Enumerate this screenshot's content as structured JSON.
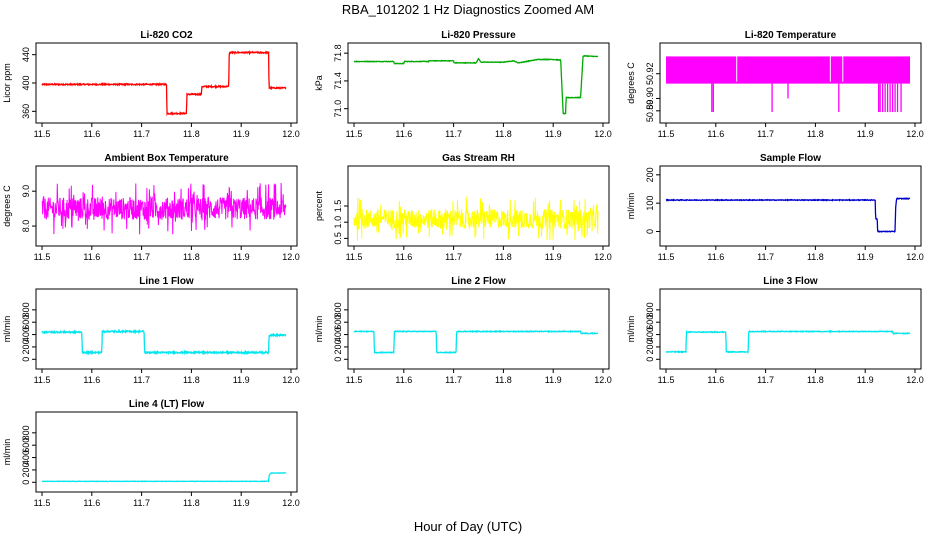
{
  "figure": {
    "title": "RBA_101202  1 Hz Diagnostics Zoomed AM",
    "xlabel": "Hour of Day (UTC)"
  },
  "chart_data": [
    {
      "type": "line",
      "title": "Li-820 CO2",
      "ylabel": "Licor ppm",
      "color": "#ff0000",
      "xlim": [
        11.5,
        12.0
      ],
      "ylim": [
        352,
        448
      ],
      "xticks": [
        "11.5",
        "11.6",
        "11.7",
        "11.8",
        "11.9",
        "12.0"
      ],
      "yticks": [
        "360",
        "400",
        "440"
      ],
      "noise": 0.9,
      "x": [
        11.5,
        11.75,
        11.751,
        11.79,
        11.791,
        11.82,
        11.821,
        11.875,
        11.876,
        11.955,
        11.956,
        11.99
      ],
      "y": [
        398,
        398,
        357,
        357,
        384,
        384,
        395,
        395,
        443,
        443,
        393,
        393
      ]
    },
    {
      "type": "line",
      "title": "Li-820 Pressure",
      "ylabel": "kPa",
      "color": "#00aa00",
      "xlim": [
        11.5,
        12.0
      ],
      "ylim": [
        70.88,
        71.86
      ],
      "xticks": [
        "11.5",
        "11.6",
        "11.7",
        "11.8",
        "11.9",
        "12.0"
      ],
      "yticks": [
        "71.0",
        "71.4",
        "71.8"
      ],
      "noise": 0.004,
      "x": [
        11.5,
        11.58,
        11.581,
        11.6,
        11.601,
        11.65,
        11.651,
        11.7,
        11.701,
        11.745,
        11.75,
        11.755,
        11.8,
        11.82,
        11.83,
        11.87,
        11.9,
        11.915,
        11.92,
        11.925,
        11.926,
        11.955,
        11.96,
        11.965,
        11.99
      ],
      "y": [
        71.68,
        71.68,
        71.65,
        71.65,
        71.68,
        71.68,
        71.69,
        71.69,
        71.66,
        71.66,
        71.72,
        71.67,
        71.67,
        71.69,
        71.66,
        71.71,
        71.71,
        71.7,
        70.93,
        70.93,
        71.16,
        71.16,
        71.76,
        71.76,
        71.75
      ]
    },
    {
      "type": "line",
      "title": "Li-820 Temperature",
      "ylabel": "degrees C",
      "color": "#ff00ff",
      "xlim": [
        11.5,
        12.0
      ],
      "ylim": [
        50.885,
        50.94
      ],
      "xticks": [
        "11.5",
        "11.6",
        "11.7",
        "11.8",
        "11.9",
        "12.0"
      ],
      "yticks": [
        "50.89",
        "50.90",
        "50.92"
      ],
      "band": [
        50.912,
        50.934
      ],
      "x": [
        11.5,
        11.99
      ],
      "y": [
        50.912,
        50.934
      ],
      "dips_x": [
        11.592,
        11.595,
        11.713,
        11.745,
        11.847,
        11.927,
        11.93,
        11.935,
        11.94,
        11.945,
        11.95,
        11.955,
        11.96,
        11.965,
        11.972
      ],
      "dips_y": [
        50.889,
        50.889,
        50.889,
        50.9,
        50.889,
        50.889,
        50.889,
        50.889,
        50.889,
        50.889,
        50.889,
        50.889,
        50.889,
        50.889,
        50.889
      ]
    },
    {
      "type": "line",
      "title": "Ambient Box Temperature",
      "ylabel": "degrees C",
      "color": "#ff00ff",
      "xlim": [
        11.5,
        12.0
      ],
      "ylim": [
        7.6,
        9.55
      ],
      "xticks": [
        "11.5",
        "11.6",
        "11.7",
        "11.8",
        "11.9",
        "12.0"
      ],
      "yticks": [
        "8.0",
        "9.0"
      ],
      "noise": 0.32,
      "x": [
        11.5,
        11.99
      ],
      "y": [
        8.5,
        8.5
      ]
    },
    {
      "type": "line",
      "title": "Gas Stream RH",
      "ylabel": "percent",
      "color": "#ffff00",
      "xlim": [
        11.5,
        12.0
      ],
      "ylim": [
        0.45,
        2.55
      ],
      "xticks": [
        "11.5",
        "11.6",
        "11.7",
        "11.8",
        "11.9",
        "12.0"
      ],
      "yticks": [
        "0.5",
        "1.0",
        "1.5"
      ],
      "noise": 0.3,
      "x": [
        11.5,
        11.99
      ],
      "y": [
        1.1,
        1.1
      ]
    },
    {
      "type": "line",
      "title": "Sample Flow",
      "ylabel": "ml/min",
      "color": "#0000cc",
      "xlim": [
        11.5,
        12.0
      ],
      "ylim": [
        -30,
        210
      ],
      "xticks": [
        "11.5",
        "11.6",
        "11.7",
        "11.8",
        "11.9",
        "12.0"
      ],
      "yticks": [
        "0",
        "100",
        "200"
      ],
      "noise": 1.2,
      "x": [
        11.5,
        11.92,
        11.921,
        11.924,
        11.925,
        11.96,
        11.961,
        11.963,
        11.99
      ],
      "y": [
        111,
        111,
        45,
        45,
        0,
        0,
        80,
        116,
        116
      ]
    },
    {
      "type": "line",
      "title": "Line 1 Flow",
      "ylabel": "ml/min",
      "color": "#00e5ee",
      "xlim": [
        11.5,
        12.0
      ],
      "ylim": [
        -60,
        1040
      ],
      "xticks": [
        "11.5",
        "11.6",
        "11.7",
        "11.8",
        "11.9",
        "12.0"
      ],
      "yticks": [
        "0",
        "200",
        "400",
        "600",
        "800"
      ],
      "noise": 12,
      "x": [
        11.5,
        11.58,
        11.581,
        11.62,
        11.621,
        11.705,
        11.706,
        11.955,
        11.956,
        11.99
      ],
      "y": [
        440,
        440,
        110,
        110,
        450,
        450,
        110,
        110,
        390,
        390
      ]
    },
    {
      "type": "line",
      "title": "Line 2 Flow",
      "ylabel": "ml/min",
      "color": "#00e5ee",
      "xlim": [
        11.5,
        12.0
      ],
      "ylim": [
        -60,
        1040
      ],
      "xticks": [
        "11.5",
        "11.6",
        "11.7",
        "11.8",
        "11.9",
        "12.0"
      ],
      "yticks": [
        "0",
        "200",
        "400",
        "600",
        "800"
      ],
      "noise": 6,
      "x": [
        11.5,
        11.54,
        11.541,
        11.58,
        11.581,
        11.665,
        11.666,
        11.705,
        11.706,
        11.955,
        11.956,
        11.99
      ],
      "y": [
        450,
        450,
        110,
        110,
        450,
        450,
        110,
        110,
        450,
        450,
        420,
        420
      ]
    },
    {
      "type": "line",
      "title": "Line 3 Flow",
      "ylabel": "ml/min",
      "color": "#00e5ee",
      "xlim": [
        11.5,
        12.0
      ],
      "ylim": [
        -60,
        1040
      ],
      "xticks": [
        "11.5",
        "11.6",
        "11.7",
        "11.8",
        "11.9",
        "12.0"
      ],
      "yticks": [
        "0",
        "200",
        "400",
        "600",
        "800"
      ],
      "noise": 6,
      "x": [
        11.5,
        11.54,
        11.541,
        11.62,
        11.621,
        11.665,
        11.666,
        11.955,
        11.956,
        11.99
      ],
      "y": [
        120,
        120,
        440,
        440,
        120,
        120,
        450,
        450,
        420,
        420
      ]
    },
    {
      "type": "line",
      "title": "Line 4 (LT) Flow",
      "ylabel": "ml/min",
      "color": "#00e5ee",
      "xlim": [
        11.5,
        12.0
      ],
      "ylim": [
        -60,
        1040
      ],
      "xticks": [
        "11.5",
        "11.6",
        "11.7",
        "11.8",
        "11.9",
        "12.0"
      ],
      "yticks": [
        "0",
        "200",
        "400",
        "600",
        "800"
      ],
      "noise": 3,
      "x": [
        11.5,
        11.955,
        11.956,
        11.96,
        11.99
      ],
      "y": [
        15,
        15,
        110,
        150,
        150
      ]
    }
  ]
}
